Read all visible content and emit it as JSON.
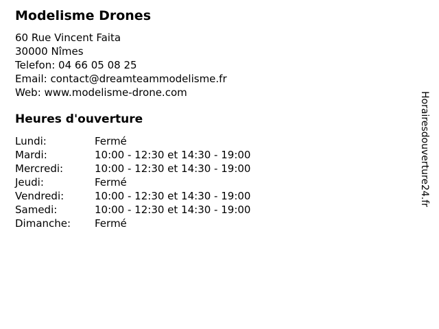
{
  "business": {
    "name": "Modelisme Drones",
    "contact_lines": [
      "60 Rue Vincent Faita",
      "30000 Nîmes",
      "Telefon: 04 66 05 08 25",
      "Email: contact@dreamteammodelisme.fr",
      "Web: www.modelisme-drone.com"
    ]
  },
  "hours": {
    "title": "Heures d'ouverture",
    "rows": [
      {
        "day": "Lundi:",
        "times": "Fermé"
      },
      {
        "day": "Mardi:",
        "times": "10:00 - 12:30 et 14:30 - 19:00"
      },
      {
        "day": "Mercredi:",
        "times": "10:00 - 12:30 et 14:30 - 19:00"
      },
      {
        "day": "Jeudi:",
        "times": "Fermé"
      },
      {
        "day": "Vendredi:",
        "times": "10:00 - 12:30 et 14:30 - 19:00"
      },
      {
        "day": "Samedi:",
        "times": "10:00 - 12:30 et 14:30 - 19:00"
      },
      {
        "day": "Dimanche:",
        "times": "Fermé"
      }
    ]
  },
  "watermark": {
    "text": "Horairesdouverture24.fr"
  },
  "colors": {
    "background": "#ffffff",
    "text": "#000000"
  }
}
